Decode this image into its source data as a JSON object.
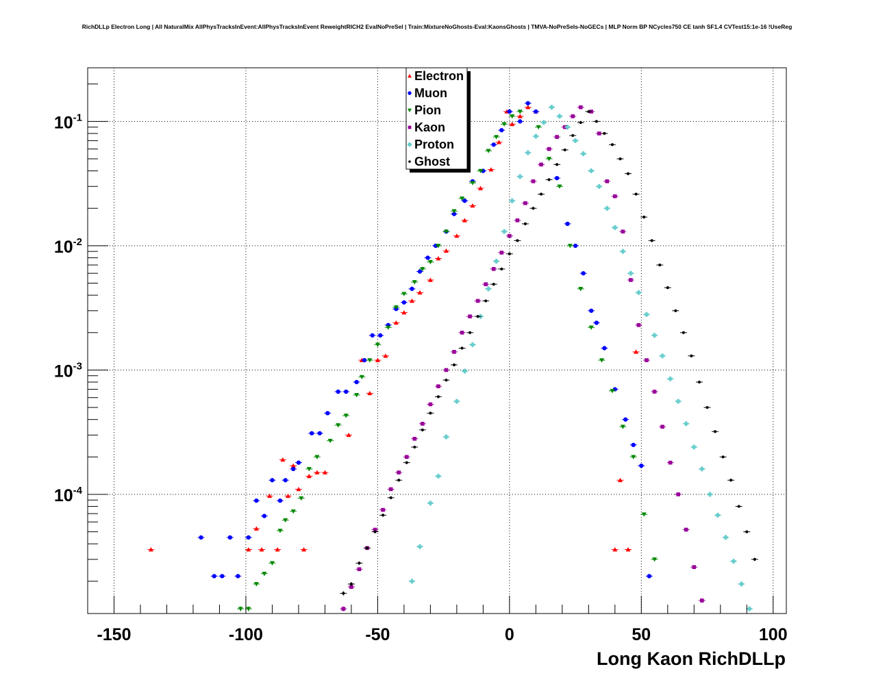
{
  "chart_data": {
    "type": "scatter",
    "title": "RichDLLp Electron Long | All NaturalMix AllPhysTracksInEvent:AllPhysTracksInEvent ReweightRICH2 EvalNoPreSel | Train:MixtureNoGhosts-Eval:KaonsGhosts | TMVA-NoPreSels-NoGECs | MLP Norm BP NCycles750 CE tanh SF1.4 CVTest15:1e-16 !UseReg",
    "xlabel": "Long Kaon RichDLLp",
    "ylabel": "",
    "xlim": [
      -160,
      105
    ],
    "ylim": [
      1.1e-05,
      0.27
    ],
    "yscale": "log",
    "grid": true,
    "legend_position": "top-center",
    "x_ticks": [
      {
        "v": -150,
        "label": "-150"
      },
      {
        "v": -100,
        "label": "-100"
      },
      {
        "v": -50,
        "label": "-50"
      },
      {
        "v": 0,
        "label": "0"
      },
      {
        "v": 50,
        "label": "50"
      },
      {
        "v": 100,
        "label": "100"
      }
    ],
    "y_ticks": [
      {
        "v": 0.1,
        "base": "10",
        "exp": "-1"
      },
      {
        "v": 0.01,
        "base": "10",
        "exp": "-2"
      },
      {
        "v": 0.001,
        "base": "10",
        "exp": "-3"
      },
      {
        "v": 0.0001,
        "base": "10",
        "exp": "-4"
      }
    ],
    "series": [
      {
        "name": "Electron",
        "color": "#ff0000",
        "marker": "triangle-up",
        "points": [
          [
            -136,
            3.6e-05
          ],
          [
            -99,
            3.6e-05
          ],
          [
            -96,
            5.3e-05
          ],
          [
            -94,
            3.6e-05
          ],
          [
            -91,
            9.7e-05
          ],
          [
            -88,
            3.6e-05
          ],
          [
            -86,
            0.00019
          ],
          [
            -84,
            9.7e-05
          ],
          [
            -82,
            0.00017
          ],
          [
            -80,
            0.00011
          ],
          [
            -78,
            3.6e-05
          ],
          [
            -76,
            0.00014
          ],
          [
            -73,
            0.00015
          ],
          [
            -70,
            0.00015
          ],
          [
            -61,
            0.0003
          ],
          [
            -56,
            0.0012
          ],
          [
            -53,
            0.00065
          ],
          [
            -50,
            0.0012
          ],
          [
            -47,
            0.0013
          ],
          [
            -43,
            0.0024
          ],
          [
            -40,
            0.0029
          ],
          [
            -37,
            0.0036
          ],
          [
            -34,
            0.0042
          ],
          [
            -30,
            0.0053
          ],
          [
            -27,
            0.0079
          ],
          [
            -24,
            0.0091
          ],
          [
            -20,
            0.012
          ],
          [
            -17,
            0.016
          ],
          [
            -14,
            0.021
          ],
          [
            -11,
            0.029
          ],
          [
            -7,
            0.041
          ],
          [
            -4,
            0.068
          ],
          [
            -1,
            0.12
          ],
          [
            1,
            0.095
          ],
          [
            4,
            0.11
          ],
          [
            7,
            0.13
          ],
          [
            10,
            0.12
          ],
          [
            40,
            3.6e-05
          ],
          [
            42,
            0.00013
          ],
          [
            45,
            3.6e-05
          ],
          [
            48,
            0.0014
          ]
        ]
      },
      {
        "name": "Muon",
        "color": "#0000ff",
        "marker": "circle",
        "points": [
          [
            -117,
            4.5e-05
          ],
          [
            -112,
            2.2e-05
          ],
          [
            -109,
            2.2e-05
          ],
          [
            -106,
            4.5e-05
          ],
          [
            -103,
            2.2e-05
          ],
          [
            -99,
            4.5e-05
          ],
          [
            -96,
            8.9e-05
          ],
          [
            -93,
            6.7e-05
          ],
          [
            -90,
            0.00013
          ],
          [
            -87,
            8.9e-05
          ],
          [
            -85,
            0.00013
          ],
          [
            -82,
            0.00016
          ],
          [
            -80,
            0.00018
          ],
          [
            -75,
            0.00031
          ],
          [
            -72,
            0.00031
          ],
          [
            -69,
            0.00045
          ],
          [
            -65,
            0.00067
          ],
          [
            -62,
            0.00067
          ],
          [
            -58,
            0.0008
          ],
          [
            -55,
            0.0012
          ],
          [
            -52,
            0.0019
          ],
          [
            -49,
            0.0019
          ],
          [
            -46,
            0.0023
          ],
          [
            -43,
            0.0031
          ],
          [
            -40,
            0.0035
          ],
          [
            -37,
            0.0045
          ],
          [
            -34,
            0.0062
          ],
          [
            -31,
            0.008
          ],
          [
            -28,
            0.01
          ],
          [
            -24,
            0.013
          ],
          [
            -21,
            0.018
          ],
          [
            -17,
            0.023
          ],
          [
            -14,
            0.033
          ],
          [
            -10,
            0.04
          ],
          [
            -6,
            0.065
          ],
          [
            -3,
            0.085
          ],
          [
            0,
            0.12
          ],
          [
            4,
            0.1
          ],
          [
            7,
            0.14
          ],
          [
            10,
            0.12
          ],
          [
            18,
            0.035
          ],
          [
            22,
            0.015
          ],
          [
            25,
            0.01
          ],
          [
            28,
            0.006
          ],
          [
            31,
            0.003
          ],
          [
            33,
            0.0024
          ],
          [
            36,
            0.0015
          ],
          [
            40,
            0.0007
          ],
          [
            44,
            0.0004
          ],
          [
            47,
            0.00025
          ],
          [
            50,
            0.00017
          ],
          [
            53,
            2.2e-05
          ]
        ]
      },
      {
        "name": "Pion",
        "color": "#008800",
        "marker": "triangle-down",
        "points": [
          [
            -102,
            1.2e-05
          ],
          [
            -99,
            1.2e-05
          ],
          [
            -96,
            1.9e-05
          ],
          [
            -93,
            2.3e-05
          ],
          [
            -90,
            2.8e-05
          ],
          [
            -87,
            5.1e-05
          ],
          [
            -85,
            6.2e-05
          ],
          [
            -82,
            7.3e-05
          ],
          [
            -79,
            9.3e-05
          ],
          [
            -76,
            0.00016
          ],
          [
            -73,
            0.0002
          ],
          [
            -68,
            0.00027
          ],
          [
            -65,
            0.00036
          ],
          [
            -62,
            0.00043
          ],
          [
            -58,
            0.00063
          ],
          [
            -56,
            0.00088
          ],
          [
            -53,
            0.0012
          ],
          [
            -50,
            0.0016
          ],
          [
            -46,
            0.0022
          ],
          [
            -43,
            0.0032
          ],
          [
            -40,
            0.0041
          ],
          [
            -36,
            0.0051
          ],
          [
            -33,
            0.0065
          ],
          [
            -30,
            0.0074
          ],
          [
            -27,
            0.01
          ],
          [
            -24,
            0.013
          ],
          [
            -21,
            0.019
          ],
          [
            -18,
            0.024
          ],
          [
            -14,
            0.032
          ],
          [
            -11,
            0.04
          ],
          [
            -8,
            0.058
          ],
          [
            -5,
            0.075
          ],
          [
            -2,
            0.095
          ],
          [
            1,
            0.11
          ],
          [
            4,
            0.12
          ],
          [
            11,
            0.09
          ],
          [
            15,
            0.05
          ],
          [
            19,
            0.03
          ],
          [
            23,
            0.01
          ],
          [
            27,
            0.0045
          ],
          [
            31,
            0.0022
          ],
          [
            35,
            0.0012
          ],
          [
            39,
            0.00068
          ],
          [
            43,
            0.00035
          ],
          [
            47,
            0.0002
          ],
          [
            51,
            6.9e-05
          ],
          [
            55,
            3e-05
          ]
        ]
      },
      {
        "name": "Kaon",
        "color": "#990099",
        "marker": "square",
        "points": [
          [
            -63,
            1.2e-05
          ],
          [
            -60,
            1.8e-05
          ],
          [
            -57,
            2.5e-05
          ],
          [
            -54,
            3.7e-05
          ],
          [
            -51,
            5.2e-05
          ],
          [
            -48,
            7.5e-05
          ],
          [
            -45,
            0.00011
          ],
          [
            -42,
            0.00015
          ],
          [
            -39,
            0.0002
          ],
          [
            -36,
            0.00028
          ],
          [
            -33,
            0.00037
          ],
          [
            -30,
            0.00053
          ],
          [
            -27,
            0.00074
          ],
          [
            -24,
            0.001
          ],
          [
            -21,
            0.0014
          ],
          [
            -18,
            0.002
          ],
          [
            -15,
            0.0027
          ],
          [
            -12,
            0.0036
          ],
          [
            -9,
            0.0049
          ],
          [
            -6,
            0.0065
          ],
          [
            -3,
            0.0088
          ],
          [
            0,
            0.012
          ],
          [
            3,
            0.016
          ],
          [
            6,
            0.022
          ],
          [
            9,
            0.033
          ],
          [
            12,
            0.045
          ],
          [
            15,
            0.06
          ],
          [
            18,
            0.075
          ],
          [
            21,
            0.09
          ],
          [
            24,
            0.11
          ],
          [
            27,
            0.13
          ],
          [
            31,
            0.12
          ],
          [
            34,
            0.08
          ],
          [
            37,
            0.033
          ],
          [
            40,
            0.025
          ],
          [
            43,
            0.013
          ],
          [
            46,
            0.0053
          ],
          [
            49,
            0.0023
          ],
          [
            52,
            0.0012
          ],
          [
            55,
            0.00067
          ],
          [
            58,
            0.00035
          ],
          [
            61,
            0.00018
          ],
          [
            64,
            0.0001
          ],
          [
            67,
            5.2e-05
          ],
          [
            70,
            2.6e-05
          ],
          [
            73,
            1.4e-05
          ]
        ]
      },
      {
        "name": "Proton",
        "color": "#66cccc",
        "marker": "cross",
        "points": [
          [
            -37,
            2e-05
          ],
          [
            -34,
            3.8e-05
          ],
          [
            -30,
            8.5e-05
          ],
          [
            -27,
            0.00014
          ],
          [
            -24,
            0.00029
          ],
          [
            -20,
            0.00056
          ],
          [
            -17,
            0.00098
          ],
          [
            -14,
            0.0016
          ],
          [
            -11,
            0.0027
          ],
          [
            -8,
            0.0045
          ],
          [
            -5,
            0.0075
          ],
          [
            -2,
            0.013
          ],
          [
            1,
            0.023
          ],
          [
            4,
            0.036
          ],
          [
            7,
            0.056
          ],
          [
            10,
            0.076
          ],
          [
            13,
            0.098
          ],
          [
            16,
            0.13
          ],
          [
            19,
            0.11
          ],
          [
            22,
            0.09
          ],
          [
            25,
            0.07
          ],
          [
            28,
            0.055
          ],
          [
            31,
            0.04
          ],
          [
            34,
            0.03
          ],
          [
            37,
            0.02
          ],
          [
            40,
            0.014
          ],
          [
            43,
            0.009
          ],
          [
            46,
            0.006
          ],
          [
            49,
            0.0042
          ],
          [
            52,
            0.0028
          ],
          [
            55,
            0.0019
          ],
          [
            58,
            0.0013
          ],
          [
            61,
            0.00085
          ],
          [
            64,
            0.00056
          ],
          [
            67,
            0.00037
          ],
          [
            70,
            0.00024
          ],
          [
            73,
            0.00016
          ],
          [
            76,
            0.0001
          ],
          [
            79,
            6.8e-05
          ],
          [
            82,
            4.5e-05
          ],
          [
            85,
            2.9e-05
          ],
          [
            88,
            1.9e-05
          ],
          [
            91,
            1.2e-05
          ]
        ]
      },
      {
        "name": "Ghost",
        "color": "#000000",
        "marker": "star",
        "points": [
          [
            -63,
            1.6e-05
          ],
          [
            -60,
            1.9e-05
          ],
          [
            -57,
            2.8e-05
          ],
          [
            -54,
            3.7e-05
          ],
          [
            -51,
            5e-05
          ],
          [
            -48,
            6.8e-05
          ],
          [
            -45,
            9.4e-05
          ],
          [
            -42,
            0.00013
          ],
          [
            -39,
            0.00018
          ],
          [
            -36,
            0.00024
          ],
          [
            -33,
            0.00033
          ],
          [
            -30,
            0.00045
          ],
          [
            -27,
            0.00061
          ],
          [
            -24,
            0.00083
          ],
          [
            -21,
            0.0011
          ],
          [
            -18,
            0.0015
          ],
          [
            -15,
            0.002
          ],
          [
            -12,
            0.0027
          ],
          [
            -9,
            0.0036
          ],
          [
            -6,
            0.0049
          ],
          [
            -3,
            0.0065
          ],
          [
            0,
            0.0086
          ],
          [
            3,
            0.011
          ],
          [
            6,
            0.015
          ],
          [
            9,
            0.02
          ],
          [
            12,
            0.026
          ],
          [
            15,
            0.034
          ],
          [
            18,
            0.045
          ],
          [
            21,
            0.059
          ],
          [
            24,
            0.077
          ],
          [
            27,
            0.098
          ],
          [
            30,
            0.12
          ],
          [
            33,
            0.1
          ],
          [
            36,
            0.08
          ],
          [
            39,
            0.065
          ],
          [
            42,
            0.05
          ],
          [
            45,
            0.038
          ],
          [
            48,
            0.026
          ],
          [
            51,
            0.017
          ],
          [
            54,
            0.011
          ],
          [
            57,
            0.007
          ],
          [
            60,
            0.0046
          ],
          [
            63,
            0.003
          ],
          [
            66,
            0.002
          ],
          [
            69,
            0.0013
          ],
          [
            72,
            0.0008
          ],
          [
            75,
            0.0005
          ],
          [
            78,
            0.00032
          ],
          [
            81,
            0.0002
          ],
          [
            84,
            0.00013
          ],
          [
            87,
            8e-05
          ],
          [
            90,
            5e-05
          ],
          [
            93,
            3e-05
          ]
        ]
      }
    ]
  }
}
